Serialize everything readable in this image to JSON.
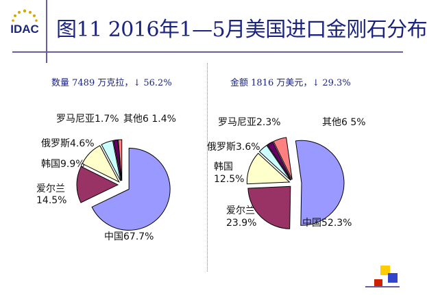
{
  "logo": {
    "text": "IDAC"
  },
  "title": "图11  2016年1—5月美国进口金刚石分布",
  "chart_data": [
    {
      "type": "pie",
      "title": "数量 7489 万克拉，↓ 56.2%",
      "categories": [
        "中国",
        "爱尔兰",
        "韩国",
        "俄罗斯",
        "罗马尼亚",
        "其他6"
      ],
      "values": [
        67.7,
        14.5,
        9.9,
        4.6,
        1.7,
        1.4
      ],
      "labels": [
        "中国67.7%",
        "爱尔兰",
        "14.5%",
        "韩国9.9%",
        "俄罗斯4.6%",
        "罗马尼亚1.7%",
        "其他6  1.4%"
      ],
      "colors": [
        "#9999ff",
        "#993366",
        "#ffffcc",
        "#ccffff",
        "#660066",
        "#ff8080"
      ]
    },
    {
      "type": "pie",
      "title": "金额 1816 万美元，↓ 29.3%",
      "categories": [
        "中国",
        "爱尔兰",
        "韩国",
        "俄罗斯",
        "罗马尼亚",
        "其他6"
      ],
      "values": [
        52.3,
        23.9,
        12.5,
        3.6,
        2.3,
        5.0
      ],
      "labels": [
        "中国52.3%",
        "爱尔兰",
        "23.9%",
        "韩国",
        "12.5%",
        "俄罗斯3.6%",
        "罗马尼亚2.3%",
        "其他6  5%"
      ],
      "colors": [
        "#9999ff",
        "#993366",
        "#ffffcc",
        "#ccffff",
        "#660066",
        "#ff8080"
      ]
    }
  ],
  "colors": {
    "accent": "#6b5a9e",
    "title": "#1a237e",
    "deco_yellow": "#ffcc00",
    "deco_blue": "#3344cc",
    "deco_red": "#cc2200"
  }
}
